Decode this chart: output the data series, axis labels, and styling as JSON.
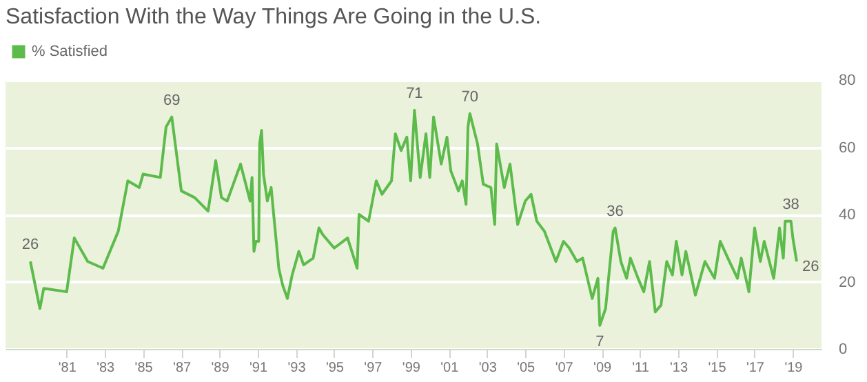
{
  "chart_data": {
    "type": "line",
    "title": "Satisfaction With the Way Things Are Going in the U.S.",
    "x": [
      1979.1,
      1979.6,
      1979.8,
      1981.0,
      1981.4,
      1982.1,
      1982.9,
      1983.7,
      1984.2,
      1984.8,
      1985.0,
      1985.9,
      1986.2,
      1986.5,
      1987.0,
      1987.7,
      1988.4,
      1988.8,
      1989.1,
      1989.4,
      1990.1,
      1990.6,
      1990.7,
      1990.8,
      1990.9,
      1991.05,
      1991.1,
      1991.2,
      1991.3,
      1991.5,
      1991.7,
      1991.9,
      1992.1,
      1992.3,
      1992.55,
      1992.8,
      1993.15,
      1993.4,
      1993.9,
      1994.2,
      1994.4,
      1995.0,
      1995.7,
      1996.2,
      1996.3,
      1996.8,
      1997.2,
      1997.5,
      1998.0,
      1998.2,
      1998.5,
      1998.8,
      1999.0,
      1999.2,
      1999.5,
      1999.8,
      2000.0,
      2000.2,
      2000.6,
      2000.9,
      2001.1,
      2001.5,
      2001.7,
      2001.9,
      2002.0,
      2002.1,
      2002.5,
      2002.8,
      2003.2,
      2003.4,
      2003.5,
      2003.9,
      2004.2,
      2004.6,
      2005.0,
      2005.3,
      2005.6,
      2006.0,
      2006.6,
      2007.0,
      2007.3,
      2007.7,
      2008.0,
      2008.5,
      2008.8,
      2008.9,
      2009.2,
      2009.6,
      2009.7,
      2010.0,
      2010.3,
      2010.5,
      2010.9,
      2011.2,
      2011.5,
      2011.8,
      2012.1,
      2012.4,
      2012.7,
      2012.9,
      2013.2,
      2013.4,
      2013.9,
      2014.4,
      2014.9,
      2015.2,
      2015.6,
      2016.1,
      2016.3,
      2016.7,
      2017.0,
      2017.3,
      2017.5,
      2018.0,
      2018.3,
      2018.5,
      2018.6,
      2018.9,
      2019.0,
      2019.2
    ],
    "series": [
      {
        "name": "% Satisfied",
        "color": "#5dbb4c",
        "values": [
          26,
          12,
          18,
          17,
          33,
          26,
          24,
          35,
          50,
          48,
          52,
          51,
          66,
          69,
          47,
          45,
          41,
          56,
          45,
          44,
          55,
          44,
          51,
          29,
          32,
          32,
          61,
          65,
          52,
          44,
          48,
          36,
          24,
          19,
          15,
          22,
          29,
          25,
          27,
          36,
          34,
          30,
          33,
          24,
          40,
          38,
          50,
          46,
          50,
          64,
          59,
          63,
          50,
          71,
          51,
          64,
          51,
          69,
          55,
          63,
          53,
          47,
          50,
          43,
          66,
          70,
          61,
          49,
          48,
          37,
          61,
          48,
          55,
          37,
          44,
          46,
          38,
          35,
          26,
          32,
          30,
          26,
          27,
          15,
          21,
          7,
          12,
          35,
          36,
          26,
          21,
          27,
          21,
          17,
          26,
          11,
          13,
          26,
          22,
          32,
          22,
          29,
          16,
          26,
          21,
          32,
          27,
          21,
          27,
          17,
          36,
          26,
          32,
          21,
          36,
          27,
          38,
          38,
          33,
          26
        ]
      }
    ],
    "annotations": [
      {
        "text": "26",
        "x": 1979.1,
        "y": 26
      },
      {
        "text": "69",
        "x": 1986.5,
        "y": 69
      },
      {
        "text": "71",
        "x": 1999.2,
        "y": 71
      },
      {
        "text": "70",
        "x": 2002.1,
        "y": 70
      },
      {
        "text": "36",
        "x": 2009.7,
        "y": 36
      },
      {
        "text": "7",
        "x": 2008.9,
        "y": 7
      },
      {
        "text": "38",
        "x": 2018.9,
        "y": 38
      },
      {
        "text": "26",
        "x": 2019.2,
        "y": 26
      }
    ],
    "xlim": [
      1977.8,
      2020.5
    ],
    "xticks": [
      {
        "value": 1981,
        "label": "'81"
      },
      {
        "value": 1983,
        "label": "'83"
      },
      {
        "value": 1985,
        "label": "'85"
      },
      {
        "value": 1987,
        "label": "'87"
      },
      {
        "value": 1989,
        "label": "'89"
      },
      {
        "value": 1991,
        "label": "'91"
      },
      {
        "value": 1993,
        "label": "'93"
      },
      {
        "value": 1995,
        "label": "'95"
      },
      {
        "value": 1997,
        "label": "'97"
      },
      {
        "value": 1999,
        "label": "'99"
      },
      {
        "value": 2001,
        "label": "'01"
      },
      {
        "value": 2003,
        "label": "'03"
      },
      {
        "value": 2005,
        "label": "'05"
      },
      {
        "value": 2007,
        "label": "'07"
      },
      {
        "value": 2009,
        "label": "'09"
      },
      {
        "value": 2011,
        "label": "'11"
      },
      {
        "value": 2013,
        "label": "'13"
      },
      {
        "value": 2015,
        "label": "'15"
      },
      {
        "value": 2017,
        "label": "'17"
      },
      {
        "value": 2019,
        "label": "'19"
      }
    ],
    "ylim": [
      0,
      80
    ],
    "yticks": [
      0,
      20,
      40,
      60,
      80
    ],
    "grid": "y",
    "legend": "top left",
    "marker": "none",
    "line_style": "solid"
  }
}
